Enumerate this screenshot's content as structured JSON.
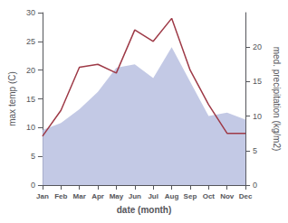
{
  "chart_data": {
    "type": "line",
    "xlabel": "date (month)",
    "ylabel": "max temp (C)",
    "y2label": "med. precipitation (kg/m2)",
    "categories": [
      "Jan",
      "Feb",
      "Mar",
      "Apr",
      "May",
      "Jun",
      "Jul",
      "Aug",
      "Sep",
      "Oct",
      "Nov",
      "Dec"
    ],
    "series": [
      {
        "type": "area",
        "axis": "y2",
        "color": "#b8c0e0",
        "values": [
          8.0,
          9.0,
          11.0,
          13.5,
          17.0,
          17.5,
          15.5,
          20.0,
          15.0,
          10.0,
          10.5,
          9.5
        ]
      },
      {
        "type": "line",
        "color": "#9e3a47",
        "values": [
          8.5,
          13.0,
          20.5,
          21.0,
          19.5,
          27.0,
          25.0,
          29.0,
          20.0,
          14.0,
          9.0,
          9.0
        ]
      }
    ],
    "ylim": [
      0,
      30
    ],
    "yticks": [
      0,
      5,
      10,
      15,
      20,
      25,
      30
    ],
    "y2lim": [
      0,
      25
    ],
    "y2ticks": [
      0,
      5,
      10,
      15,
      20
    ],
    "grid": false
  }
}
